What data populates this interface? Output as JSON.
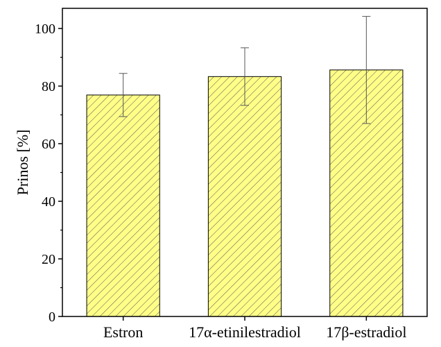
{
  "chart_data": {
    "type": "bar",
    "categories": [
      "Estron",
      "17α-etinilestradiol",
      "17β-estradiol"
    ],
    "values": [
      76.9,
      83.3,
      85.6
    ],
    "errors": [
      7.5,
      10.0,
      18.6
    ],
    "title": "",
    "xlabel": "",
    "ylabel": "Prinos [%]",
    "ylim": [
      0,
      107
    ],
    "yticks": [
      0,
      20,
      40,
      60,
      80,
      100
    ],
    "yticklabels": [
      "0",
      "20",
      "40",
      "60",
      "80",
      "100"
    ],
    "grid": false,
    "legend": "none",
    "bar_fill": "#ffff88",
    "hatch_color": "#555555",
    "edge_color": "#000000",
    "error_bar_color": "#555555"
  }
}
